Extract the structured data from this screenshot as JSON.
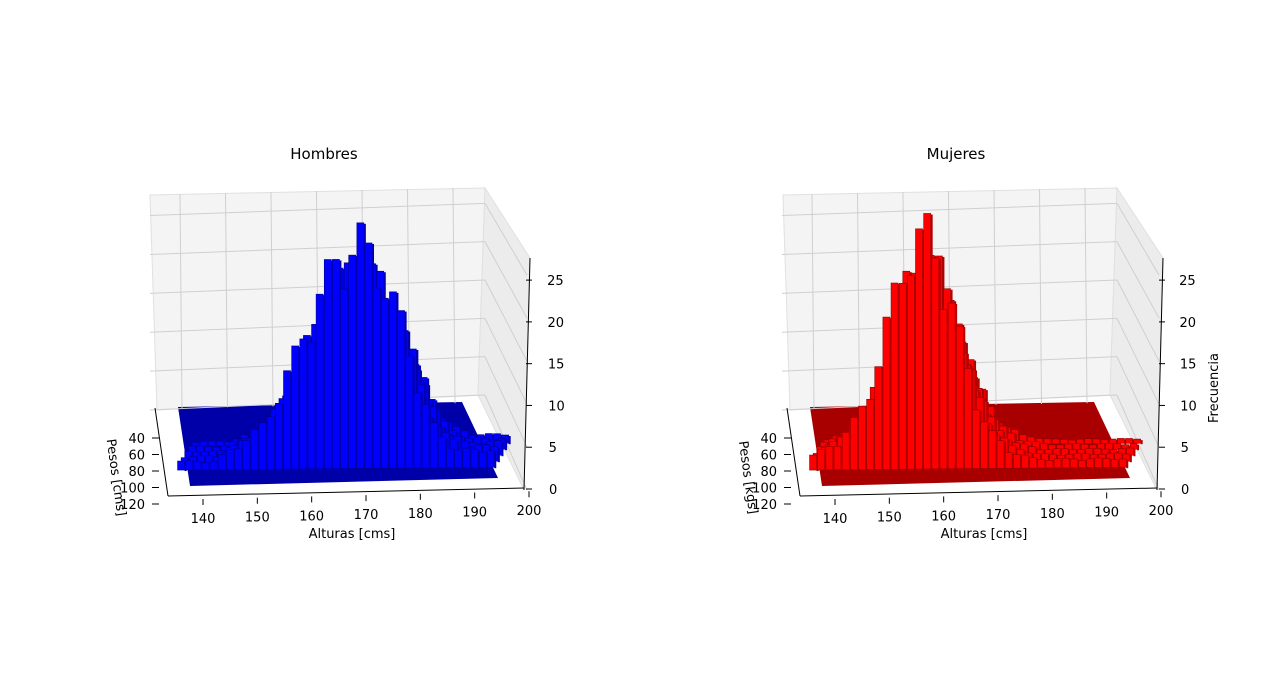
{
  "chart_data": [
    {
      "type": "bar3d",
      "title": "Hombres",
      "xlabel": "Alturas [cms]",
      "ylabel": "Pesos [cms]",
      "zlabel": "",
      "x_ticks": [
        "140",
        "150",
        "160",
        "170",
        "180",
        "190",
        "200"
      ],
      "y_ticks": [
        "40",
        "60",
        "80",
        "100",
        "120"
      ],
      "z_ticks": [
        "0",
        "5",
        "10",
        "15",
        "20",
        "25"
      ],
      "xlim": [
        135,
        205
      ],
      "ylim": [
        30,
        125
      ],
      "zlim": [
        0,
        27
      ],
      "bar_color": "#0000ff",
      "floor_color": "#0000a8",
      "height_profile": [
        {
          "x": 145,
          "z": 1
        },
        {
          "x": 150,
          "z": 3
        },
        {
          "x": 152,
          "z": 4
        },
        {
          "x": 154,
          "z": 5
        },
        {
          "x": 156,
          "z": 7
        },
        {
          "x": 158,
          "z": 10
        },
        {
          "x": 160,
          "z": 13
        },
        {
          "x": 162,
          "z": 16
        },
        {
          "x": 164,
          "z": 19
        },
        {
          "x": 166,
          "z": 22
        },
        {
          "x": 168,
          "z": 24
        },
        {
          "x": 170,
          "z": 25
        },
        {
          "x": 172,
          "z": 26
        },
        {
          "x": 174,
          "z": 24
        },
        {
          "x": 176,
          "z": 22
        },
        {
          "x": 178,
          "z": 19
        },
        {
          "x": 180,
          "z": 16
        },
        {
          "x": 182,
          "z": 11
        },
        {
          "x": 184,
          "z": 7
        },
        {
          "x": 186,
          "z": 4
        },
        {
          "x": 190,
          "z": 2
        }
      ]
    },
    {
      "type": "bar3d",
      "title": "Mujeres",
      "xlabel": "Alturas [cms]",
      "ylabel": "Pesos [kgs]",
      "zlabel": "Frecuencia",
      "x_ticks": [
        "140",
        "150",
        "160",
        "170",
        "180",
        "190",
        "200"
      ],
      "y_ticks": [
        "40",
        "60",
        "80",
        "100",
        "120"
      ],
      "z_ticks": [
        "0",
        "5",
        "10",
        "15",
        "20",
        "25"
      ],
      "xlim": [
        135,
        205
      ],
      "ylim": [
        30,
        125
      ],
      "zlim": [
        0,
        27
      ],
      "bar_color": "#ff0000",
      "floor_color": "#a80000",
      "height_profile": [
        {
          "x": 137,
          "z": 1
        },
        {
          "x": 140,
          "z": 2
        },
        {
          "x": 143,
          "z": 3
        },
        {
          "x": 146,
          "z": 5
        },
        {
          "x": 148,
          "z": 7
        },
        {
          "x": 150,
          "z": 10
        },
        {
          "x": 152,
          "z": 15
        },
        {
          "x": 154,
          "z": 20
        },
        {
          "x": 156,
          "z": 24
        },
        {
          "x": 158,
          "z": 26
        },
        {
          "x": 160,
          "z": 27
        },
        {
          "x": 162,
          "z": 24
        },
        {
          "x": 164,
          "z": 20
        },
        {
          "x": 166,
          "z": 15
        },
        {
          "x": 168,
          "z": 10
        },
        {
          "x": 170,
          "z": 6
        },
        {
          "x": 172,
          "z": 4
        },
        {
          "x": 175,
          "z": 2
        },
        {
          "x": 180,
          "z": 1
        }
      ]
    }
  ]
}
